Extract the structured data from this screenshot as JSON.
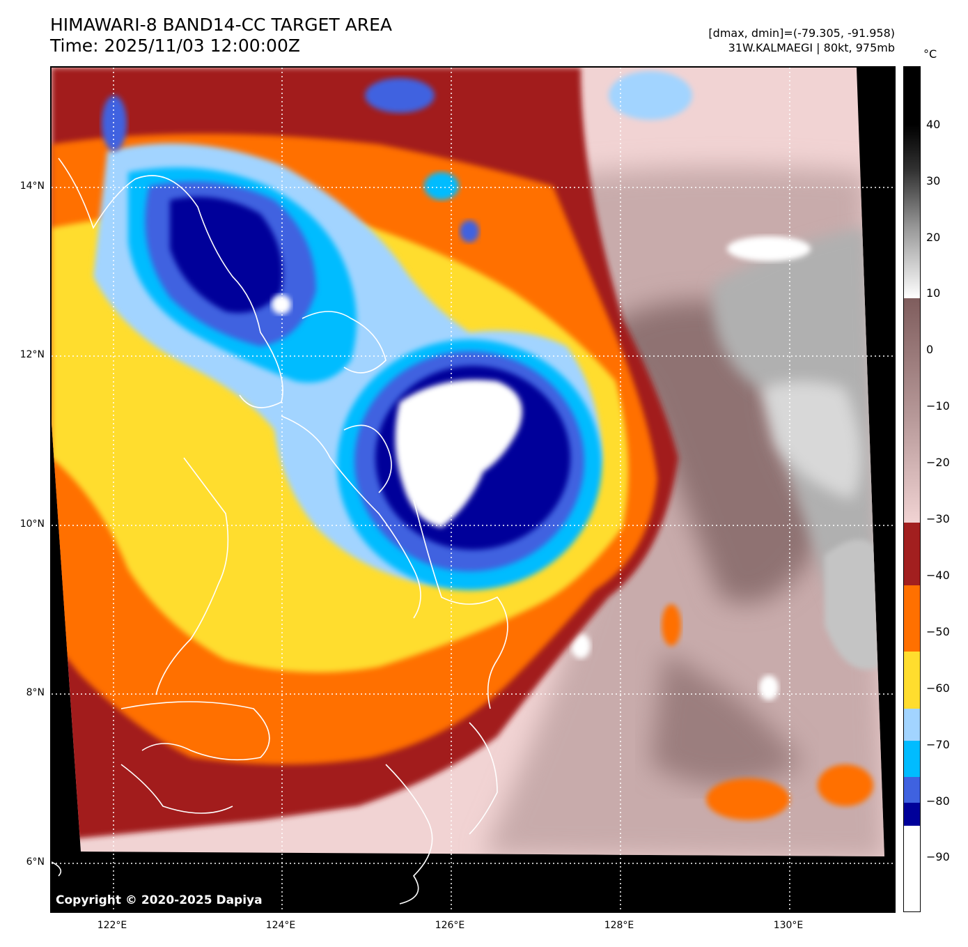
{
  "title": {
    "line1": "HIMAWARI-8 BAND14-CC TARGET AREA",
    "line2": "Time: 2025/11/03 12:00:00Z"
  },
  "info": {
    "line1": "[dmax, dmin]=(-79.305, -91.958)",
    "line2": "31W.KALMAEGI | 80kt, 975mb"
  },
  "copyright": "Copyright © 2020-2025 Dapiya",
  "grid": {
    "lat_labels": [
      "14°N",
      "12°N",
      "10°N",
      "8°N",
      "6°N"
    ],
    "lon_labels": [
      "122°E",
      "124°E",
      "126°E",
      "128°E",
      "130°E"
    ]
  },
  "colorbar": {
    "unit": "°C",
    "tick_labels": [
      "40",
      "30",
      "20",
      "10",
      "0",
      "−10",
      "−20",
      "−30",
      "−40",
      "−50",
      "−60",
      "−70",
      "−80",
      "−90"
    ],
    "colors": {
      "white": "#ffffff",
      "navy": "#00009a",
      "royal_blue": "#3f62e0",
      "deep_sky": "#00bcff",
      "light_sky": "#a2d4ff",
      "yellow": "#ffdd2e",
      "orange": "#ff7000",
      "dark_red": "#a21f1f",
      "pink": "#f1d3d3",
      "brown": "#7f5d5d",
      "black": "#000000"
    }
  }
}
